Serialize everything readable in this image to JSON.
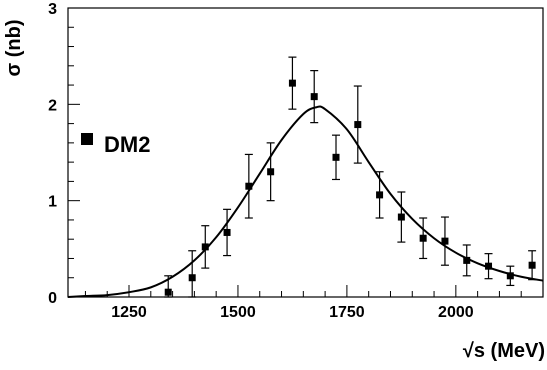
{
  "chart_data": {
    "type": "scatter",
    "xlim": [
      1110,
      2200
    ],
    "ylim": [
      0,
      3
    ],
    "xticks": [
      1250,
      1500,
      1750,
      2000
    ],
    "yticks": [
      0,
      1,
      2,
      3
    ],
    "x_tick_labels": [
      "1250",
      "1500",
      "1750",
      "2000"
    ],
    "y_tick_labels": [
      "0",
      "1",
      "2",
      "3"
    ],
    "xlabel": "√s (MeV)",
    "ylabel": "σ (nb)",
    "grid": false,
    "legend_position": "left",
    "series": [
      {
        "name": "DM2",
        "kind": "points-with-errors",
        "color": "#000000",
        "marker": "square",
        "points": [
          {
            "x": 1340,
            "y": 0.05,
            "err": 0.17
          },
          {
            "x": 1395,
            "y": 0.2,
            "err": 0.28
          },
          {
            "x": 1425,
            "y": 0.52,
            "err": 0.22
          },
          {
            "x": 1475,
            "y": 0.67,
            "err": 0.24
          },
          {
            "x": 1525,
            "y": 1.15,
            "err": 0.33
          },
          {
            "x": 1575,
            "y": 1.3,
            "err": 0.3
          },
          {
            "x": 1625,
            "y": 2.22,
            "err": 0.27
          },
          {
            "x": 1675,
            "y": 2.08,
            "err": 0.27
          },
          {
            "x": 1725,
            "y": 1.45,
            "err": 0.23
          },
          {
            "x": 1775,
            "y": 1.79,
            "err": 0.4
          },
          {
            "x": 1825,
            "y": 1.06,
            "err": 0.24
          },
          {
            "x": 1875,
            "y": 0.83,
            "err": 0.26
          },
          {
            "x": 1925,
            "y": 0.61,
            "err": 0.21
          },
          {
            "x": 1975,
            "y": 0.58,
            "err": 0.25
          },
          {
            "x": 2025,
            "y": 0.38,
            "err": 0.16
          },
          {
            "x": 2075,
            "y": 0.32,
            "err": 0.13
          },
          {
            "x": 2125,
            "y": 0.22,
            "err": 0.1
          },
          {
            "x": 2175,
            "y": 0.33,
            "err": 0.15
          }
        ]
      },
      {
        "name": "",
        "kind": "fit-curve",
        "color": "#000000",
        "points": [
          {
            "x": 1110,
            "y": 0.0
          },
          {
            "x": 1150,
            "y": 0.01
          },
          {
            "x": 1200,
            "y": 0.02
          },
          {
            "x": 1250,
            "y": 0.05
          },
          {
            "x": 1300,
            "y": 0.1
          },
          {
            "x": 1350,
            "y": 0.21
          },
          {
            "x": 1400,
            "y": 0.38
          },
          {
            "x": 1450,
            "y": 0.62
          },
          {
            "x": 1500,
            "y": 0.93
          },
          {
            "x": 1550,
            "y": 1.28
          },
          {
            "x": 1600,
            "y": 1.63
          },
          {
            "x": 1650,
            "y": 1.9
          },
          {
            "x": 1680,
            "y": 1.97
          },
          {
            "x": 1700,
            "y": 1.95
          },
          {
            "x": 1750,
            "y": 1.74
          },
          {
            "x": 1800,
            "y": 1.4
          },
          {
            "x": 1850,
            "y": 1.07
          },
          {
            "x": 1900,
            "y": 0.81
          },
          {
            "x": 1950,
            "y": 0.61
          },
          {
            "x": 2000,
            "y": 0.46
          },
          {
            "x": 2050,
            "y": 0.35
          },
          {
            "x": 2100,
            "y": 0.27
          },
          {
            "x": 2150,
            "y": 0.21
          },
          {
            "x": 2200,
            "y": 0.17
          }
        ]
      }
    ]
  }
}
